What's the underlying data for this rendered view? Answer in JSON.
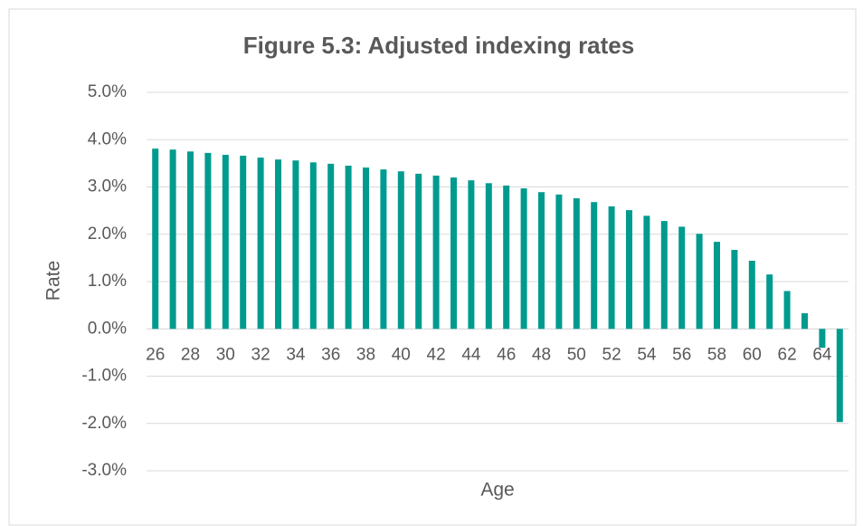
{
  "chart_data": {
    "type": "bar",
    "title": "Figure 5.3: Adjusted indexing rates",
    "x_label": "Age",
    "y_label": "Rate",
    "categories": [
      "26",
      null,
      "28",
      null,
      "30",
      null,
      "32",
      null,
      "34",
      null,
      "36",
      null,
      "38",
      null,
      "40",
      null,
      "42",
      null,
      "44",
      null,
      "46",
      null,
      "48",
      null,
      "50",
      null,
      "52",
      null,
      "54",
      null,
      "56",
      null,
      "58",
      null,
      "60",
      null,
      "62",
      null,
      "64",
      null
    ],
    "values": [
      3.81,
      3.79,
      3.75,
      3.72,
      3.68,
      3.66,
      3.62,
      3.58,
      3.56,
      3.52,
      3.49,
      3.45,
      3.41,
      3.37,
      3.33,
      3.28,
      3.24,
      3.2,
      3.14,
      3.08,
      3.03,
      2.97,
      2.89,
      2.84,
      2.76,
      2.68,
      2.59,
      2.51,
      2.39,
      2.28,
      2.16,
      2.01,
      1.84,
      1.67,
      1.44,
      1.15,
      0.8,
      0.33,
      -0.4,
      -1.97
    ],
    "color": "#009b8f",
    "ylim": [
      -3,
      5
    ],
    "yticks": [
      {
        "value": -3,
        "label": "-3.0%"
      },
      {
        "value": -2,
        "label": "-2.0%"
      },
      {
        "value": -1,
        "label": "-1.0%"
      },
      {
        "value": 0,
        "label": "0.0%"
      },
      {
        "value": 1,
        "label": "1.0%"
      },
      {
        "value": 2,
        "label": "2.0%"
      },
      {
        "value": 3,
        "label": "3.0%"
      },
      {
        "value": 4,
        "label": "4.0%"
      },
      {
        "value": 5,
        "label": "5.0%"
      }
    ],
    "grid": true
  }
}
